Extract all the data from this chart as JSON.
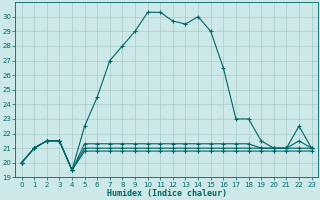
{
  "xlabel": "Humidex (Indice chaleur)",
  "x": [
    0,
    1,
    2,
    3,
    4,
    5,
    6,
    7,
    8,
    9,
    10,
    11,
    12,
    13,
    14,
    15,
    16,
    17,
    18,
    19,
    20,
    21,
    22,
    23
  ],
  "y_main": [
    20,
    21,
    21.5,
    21.5,
    19.5,
    22.5,
    24.5,
    27,
    28,
    29,
    30.3,
    30.3,
    29.7,
    29.5,
    30,
    29,
    26.5,
    23,
    23,
    21.5,
    21,
    21,
    22.5,
    21
  ],
  "y_line1": [
    20,
    21,
    21.5,
    21.5,
    19.5,
    21.3,
    21.3,
    21.3,
    21.3,
    21.3,
    21.3,
    21.3,
    21.3,
    21.3,
    21.3,
    21.3,
    21.3,
    21.3,
    21.3,
    21.0,
    21.0,
    21.0,
    21.0,
    21.0
  ],
  "y_line2": [
    20,
    21,
    21.5,
    21.5,
    19.5,
    21.0,
    21.0,
    21.0,
    21.0,
    21.0,
    21.0,
    21.0,
    21.0,
    21.0,
    21.0,
    21.0,
    21.0,
    21.0,
    21.0,
    21.0,
    21.0,
    21.0,
    21.5,
    21.0
  ],
  "y_line3": [
    20,
    21,
    21.5,
    21.5,
    19.5,
    20.8,
    20.8,
    20.8,
    20.8,
    20.8,
    20.8,
    20.8,
    20.8,
    20.8,
    20.8,
    20.8,
    20.8,
    20.8,
    20.8,
    20.8,
    20.8,
    20.8,
    20.8,
    20.8
  ],
  "line_color": "#006666",
  "bg_color": "#cce8e8",
  "grid_color": "#aacccc",
  "ylim": [
    19,
    31
  ],
  "xlim": [
    -0.5,
    23.5
  ],
  "yticks": [
    19,
    20,
    21,
    22,
    23,
    24,
    25,
    26,
    27,
    28,
    29,
    30
  ],
  "xticks": [
    0,
    1,
    2,
    3,
    4,
    5,
    6,
    7,
    8,
    9,
    10,
    11,
    12,
    13,
    14,
    15,
    16,
    17,
    18,
    19,
    20,
    21,
    22,
    23
  ],
  "marker": "+",
  "markersize": 3,
  "linewidth": 0.8
}
